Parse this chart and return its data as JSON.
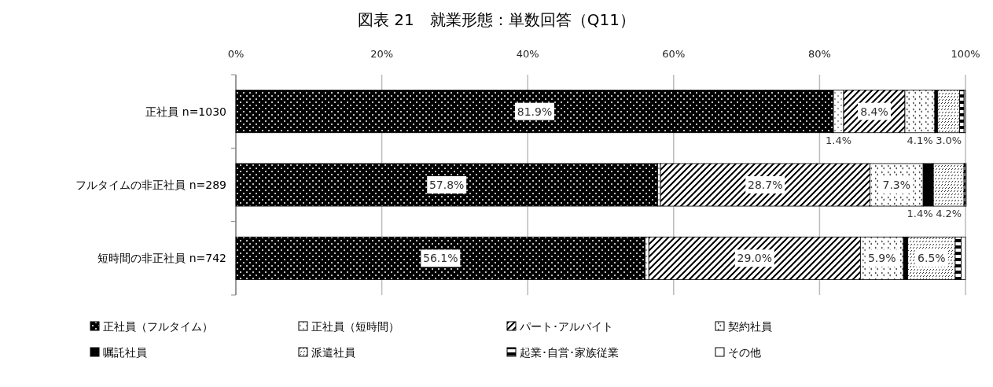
{
  "chart_data": {
    "type": "bar",
    "orientation": "horizontal",
    "stacked": true,
    "title": "図表 21　就業形態：単数回答（Q11）",
    "categories": [
      "正社員 n=1030",
      "フルタイムの非正社員 n=289",
      "短時間の非正社員 n=742"
    ],
    "xlim": [
      0,
      100
    ],
    "xticks": [
      {
        "value": 0,
        "label": "0%"
      },
      {
        "value": 20,
        "label": "20%"
      },
      {
        "value": 40,
        "label": "40%"
      },
      {
        "value": 60,
        "label": "60%"
      },
      {
        "value": 80,
        "label": "80%"
      },
      {
        "value": 100,
        "label": "100%"
      }
    ],
    "grid": "x",
    "legend": "bottom",
    "series": [
      {
        "name": "正社員（フルタイム）",
        "color": "#000000",
        "values": [
          81.9,
          57.8,
          56.1
        ],
        "value_labels": [
          "81.9%",
          "57.8%",
          "56.1%"
        ]
      },
      {
        "name": "正社員（短時間）",
        "color": "#000000",
        "values": [
          1.4,
          0.4,
          0.5
        ],
        "value_labels": [
          "1.4%",
          null,
          null
        ]
      },
      {
        "name": "パート･アルバイト",
        "color": "#000000",
        "values": [
          8.4,
          28.7,
          29.0
        ],
        "value_labels": [
          "8.4%",
          "28.7%",
          "29.0%"
        ]
      },
      {
        "name": "契約社員",
        "color": "#000000",
        "values": [
          4.1,
          7.3,
          5.9
        ],
        "value_labels": [
          "4.1%",
          "7.3%",
          "5.9%"
        ]
      },
      {
        "name": "嘱託社員",
        "color": "#000000",
        "values": [
          0.4,
          1.4,
          0.6
        ],
        "value_labels": [
          null,
          "1.4%",
          null
        ]
      },
      {
        "name": "派遣社員",
        "color": "#000000",
        "values": [
          3.0,
          4.2,
          6.5
        ],
        "value_labels": [
          "3.0%",
          "4.2%",
          "6.5%"
        ]
      },
      {
        "name": "起業･自営･家族従業",
        "color": "#000000",
        "values": [
          0.6,
          0.2,
          0.8
        ],
        "value_labels": [
          null,
          null,
          null
        ]
      },
      {
        "name": "その他",
        "color": "#000000",
        "values": [
          0.2,
          0.1,
          0.6
        ],
        "value_labels": [
          null,
          null,
          null
        ]
      }
    ]
  }
}
